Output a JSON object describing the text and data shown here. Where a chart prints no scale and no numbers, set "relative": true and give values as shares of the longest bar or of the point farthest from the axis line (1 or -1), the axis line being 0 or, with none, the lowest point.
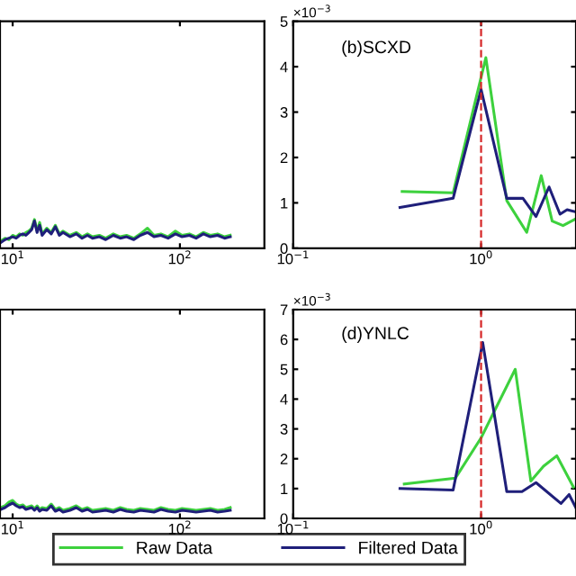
{
  "chart_data": [
    {
      "type": "line",
      "relative": true,
      "legend": "bottom",
      "log": "x",
      "xlim": [
        8.4,
        320
      ],
      "xticks": [
        {
          "value": 10,
          "label": "10$^{1}$"
        },
        {
          "value": 100,
          "label": "10$^{2}$"
        }
      ],
      "tick_labels": "x",
      "x": [
        8.5,
        9,
        9.5,
        10,
        10.5,
        11,
        11.5,
        12,
        12.5,
        13,
        13.5,
        14,
        14.5,
        15,
        16,
        17,
        18,
        19,
        20,
        22,
        24,
        26,
        28,
        30,
        33,
        36,
        40,
        44,
        48,
        53,
        58,
        64,
        70,
        77,
        85,
        94,
        103,
        114,
        125,
        138,
        152,
        168,
        185,
        200
      ],
      "series": [
        {
          "name": "Raw Data",
          "color": "#3dd13d",
          "values": [
            0.25,
            0.35,
            0.3,
            0.45,
            0.4,
            0.5,
            0.45,
            0.55,
            0.6,
            0.7,
            1.0,
            0.6,
            0.9,
            0.5,
            0.7,
            0.55,
            0.8,
            0.5,
            0.6,
            0.45,
            0.55,
            0.4,
            0.5,
            0.4,
            0.45,
            0.35,
            0.5,
            0.4,
            0.45,
            0.35,
            0.5,
            0.7,
            0.45,
            0.5,
            0.4,
            0.6,
            0.45,
            0.5,
            0.4,
            0.55,
            0.45,
            0.5,
            0.4,
            0.45
          ]
        },
        {
          "name": "Filtered Data",
          "color": "#1f1f7a",
          "values": [
            0.2,
            0.3,
            0.35,
            0.4,
            0.35,
            0.45,
            0.5,
            0.45,
            0.55,
            0.65,
            0.95,
            0.55,
            0.8,
            0.45,
            0.65,
            0.5,
            0.75,
            0.45,
            0.55,
            0.4,
            0.5,
            0.35,
            0.45,
            0.35,
            0.4,
            0.3,
            0.45,
            0.35,
            0.4,
            0.3,
            0.45,
            0.55,
            0.4,
            0.45,
            0.35,
            0.5,
            0.4,
            0.45,
            0.35,
            0.5,
            0.4,
            0.45,
            0.35,
            0.4
          ]
        }
      ]
    },
    {
      "type": "line",
      "title": "(b)SCXD",
      "legend": "bottom",
      "annotations": [
        "×10$^{−3}$"
      ],
      "log": "x",
      "xlim": [
        0.1,
        3.2
      ],
      "xticks": [
        {
          "value": 0.1,
          "label": "10$^{−1}$"
        },
        {
          "value": 1,
          "label": "10$^{0}$"
        }
      ],
      "ylim": [
        0,
        5
      ],
      "yticks": [
        0,
        1,
        2,
        3,
        4,
        5
      ],
      "ref_lines": [
        {
          "axis": "x",
          "value": 1,
          "color": "#d62728",
          "line_style": "dashed"
        }
      ],
      "series": [
        {
          "name": "Raw Data",
          "color": "#3dd13d",
          "x": [
            0.38,
            0.71,
            1.06,
            1.37,
            1.75,
            2.09,
            2.39,
            2.73,
            3.2
          ],
          "values": [
            1.25,
            1.22,
            4.2,
            1.05,
            0.35,
            1.6,
            0.6,
            0.5,
            0.65
          ]
        },
        {
          "name": "Filtered Data",
          "color": "#1f1f7a",
          "x": [
            0.37,
            0.71,
            1.0,
            1.37,
            1.67,
            1.96,
            2.3,
            2.63,
            2.87,
            3.2
          ],
          "values": [
            0.9,
            1.1,
            3.5,
            1.1,
            1.1,
            0.7,
            1.35,
            0.75,
            0.85,
            0.8
          ]
        }
      ]
    },
    {
      "type": "line",
      "relative": true,
      "log": "x",
      "xlim": [
        8.4,
        320
      ],
      "xticks": [
        {
          "value": 10,
          "label": "10$^{1}$"
        },
        {
          "value": 100,
          "label": "10$^{2}$"
        }
      ],
      "tick_labels": "x",
      "x": [
        8.5,
        9,
        9.5,
        10,
        10.5,
        11,
        11.5,
        12,
        12.5,
        13,
        13.5,
        14,
        14.5,
        15,
        16,
        17,
        18,
        19,
        20,
        22,
        24,
        26,
        28,
        30,
        33,
        36,
        40,
        44,
        48,
        53,
        58,
        64,
        70,
        77,
        85,
        94,
        103,
        114,
        125,
        138,
        152,
        168,
        185,
        200
      ],
      "series": [
        {
          "name": "Raw Data",
          "color": "#3dd13d",
          "values": [
            0.6,
            0.7,
            0.9,
            1.0,
            0.8,
            0.7,
            0.75,
            0.6,
            0.65,
            0.7,
            0.55,
            0.7,
            0.5,
            0.6,
            0.55,
            0.8,
            0.5,
            0.6,
            0.45,
            0.55,
            0.7,
            0.5,
            0.6,
            0.45,
            0.5,
            0.55,
            0.45,
            0.6,
            0.5,
            0.45,
            0.55,
            0.5,
            0.45,
            0.6,
            0.5,
            0.45,
            0.55,
            0.5,
            0.45,
            0.5,
            0.55,
            0.45,
            0.5,
            0.6
          ]
        },
        {
          "name": "Filtered Data",
          "color": "#1f1f7a",
          "values": [
            0.5,
            0.6,
            0.75,
            0.85,
            0.7,
            0.6,
            0.65,
            0.5,
            0.55,
            0.6,
            0.45,
            0.6,
            0.4,
            0.5,
            0.45,
            0.7,
            0.4,
            0.5,
            0.35,
            0.45,
            0.6,
            0.4,
            0.5,
            0.35,
            0.4,
            0.45,
            0.35,
            0.5,
            0.4,
            0.35,
            0.45,
            0.4,
            0.35,
            0.5,
            0.4,
            0.35,
            0.45,
            0.4,
            0.35,
            0.4,
            0.45,
            0.35,
            0.4,
            0.45
          ]
        }
      ]
    },
    {
      "type": "line",
      "title": "(d)YNLC",
      "annotations": [
        "×10$^{−3}$"
      ],
      "log": "x",
      "xlim": [
        0.1,
        3.2
      ],
      "xticks": [
        {
          "value": 0.1,
          "label": "10$^{−1}$"
        },
        {
          "value": 1,
          "label": "10$^{0}$"
        }
      ],
      "ylim": [
        0,
        7
      ],
      "yticks": [
        0,
        1,
        2,
        3,
        4,
        5,
        6,
        7
      ],
      "legend": "bottom",
      "ref_lines": [
        {
          "axis": "x",
          "value": 1,
          "color": "#d62728",
          "line_style": "dashed"
        }
      ],
      "series": [
        {
          "name": "Raw Data",
          "color": "#3dd13d",
          "x": [
            0.39,
            0.73,
            1.0,
            1.52,
            1.84,
            2.15,
            2.53,
            3.1
          ],
          "values": [
            1.15,
            1.35,
            2.7,
            5.0,
            1.25,
            1.75,
            2.1,
            1.05
          ]
        },
        {
          "name": "Filtered Data",
          "color": "#1f1f7a",
          "x": [
            0.37,
            0.71,
            1.02,
            1.37,
            1.65,
            1.96,
            2.66,
            2.94,
            3.2
          ],
          "values": [
            1.0,
            0.95,
            5.9,
            0.9,
            0.9,
            1.2,
            0.5,
            0.8,
            0.35
          ]
        }
      ]
    }
  ]
}
